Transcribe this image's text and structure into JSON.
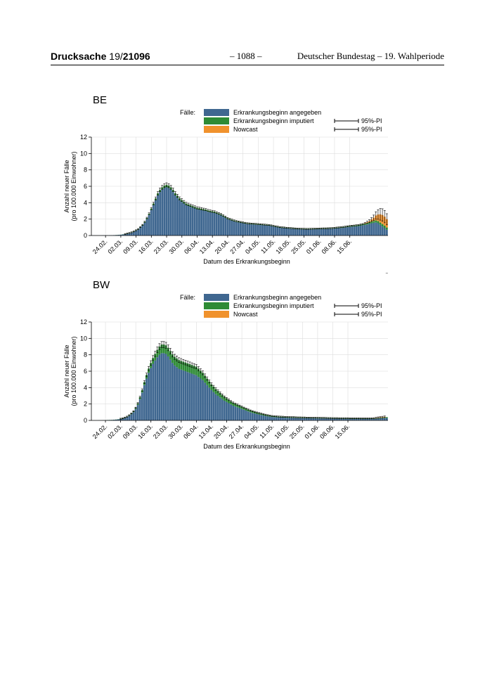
{
  "header": {
    "drucksache_label": "Drucksache",
    "drucksache_number_prefix": "19/",
    "drucksache_number": "21096",
    "page_number": "– 1088 –",
    "right_text": "Deutscher Bundestag – 19. Wahlperiode"
  },
  "colors": {
    "angegeben": "#3f6790",
    "imputiert": "#2e8b35",
    "nowcast": "#f0922d",
    "grid": "#dddddd"
  },
  "chart_data": [
    {
      "type": "bar",
      "stacked": true,
      "title": "BE",
      "legend_label": "Fälle:",
      "legend": [
        "Erkrankungsbeginn angegeben",
        "Erkrankungsbeginn imputiert",
        "Nowcast"
      ],
      "pi_label": "95%-PI",
      "ylabel": "Anzahl neuer Fälle\n(pro 100.000 Einwohner)",
      "xlabel": "Datum des Erkrankungsbeginn",
      "ylim": [
        0,
        12
      ],
      "yticks": [
        0,
        2,
        4,
        6,
        8,
        10,
        12
      ],
      "xticks": [
        "24.02.",
        "02.03.",
        "09.03.",
        "16.03.",
        "23.03.",
        "30.03.",
        "06.04.",
        "13.04.",
        "20.04.",
        "27.04.",
        "04.05.",
        "11.05.",
        "18.05.",
        "25.05.",
        "01.06.",
        "08.06.",
        "15.06."
      ],
      "x_start": "2020-02-18",
      "angegeben": [
        0.02,
        0.02,
        0.02,
        0.02,
        0.02,
        0.03,
        0.03,
        0.03,
        0.04,
        0.04,
        0.05,
        0.06,
        0.08,
        0.1,
        0.13,
        0.16,
        0.22,
        0.28,
        0.35,
        0.45,
        0.58,
        0.72,
        0.95,
        1.2,
        1.55,
        2.0,
        2.5,
        3.1,
        3.7,
        4.3,
        4.9,
        5.3,
        5.6,
        5.8,
        5.9,
        5.8,
        5.6,
        5.3,
        4.9,
        4.6,
        4.3,
        4.1,
        3.9,
        3.7,
        3.6,
        3.5,
        3.4,
        3.3,
        3.2,
        3.15,
        3.1,
        3.05,
        3.0,
        2.9,
        2.85,
        2.8,
        2.75,
        2.65,
        2.55,
        2.45,
        2.3,
        2.15,
        2.0,
        1.9,
        1.8,
        1.72,
        1.65,
        1.6,
        1.55,
        1.5,
        1.45,
        1.4,
        1.38,
        1.36,
        1.34,
        1.32,
        1.3,
        1.28,
        1.26,
        1.24,
        1.22,
        1.2,
        1.15,
        1.1,
        1.05,
        1.0,
        0.95,
        0.92,
        0.9,
        0.88,
        0.86,
        0.84,
        0.82,
        0.8,
        0.78,
        0.77,
        0.76,
        0.75,
        0.74,
        0.74,
        0.75,
        0.76,
        0.77,
        0.78,
        0.79,
        0.8,
        0.8,
        0.8,
        0.81,
        0.82,
        0.83,
        0.85,
        0.88,
        0.9,
        0.92,
        0.95,
        0.98,
        1.02,
        1.05,
        1.08,
        1.1,
        1.12,
        1.15,
        1.2,
        1.25,
        1.3,
        1.35,
        1.42,
        1.5,
        1.55,
        1.6,
        1.5,
        1.3,
        1.1,
        0.9,
        0.7
      ],
      "imputiert": [
        0.0,
        0.0,
        0.0,
        0.0,
        0.0,
        0.0,
        0.0,
        0.0,
        0.0,
        0.0,
        0.0,
        0.01,
        0.01,
        0.01,
        0.02,
        0.02,
        0.03,
        0.03,
        0.04,
        0.05,
        0.06,
        0.07,
        0.08,
        0.1,
        0.12,
        0.14,
        0.16,
        0.18,
        0.2,
        0.22,
        0.24,
        0.26,
        0.27,
        0.28,
        0.28,
        0.28,
        0.27,
        0.26,
        0.25,
        0.24,
        0.23,
        0.22,
        0.21,
        0.2,
        0.19,
        0.19,
        0.18,
        0.18,
        0.17,
        0.17,
        0.17,
        0.16,
        0.16,
        0.16,
        0.15,
        0.15,
        0.15,
        0.14,
        0.14,
        0.14,
        0.13,
        0.13,
        0.12,
        0.12,
        0.12,
        0.11,
        0.11,
        0.11,
        0.1,
        0.1,
        0.1,
        0.1,
        0.1,
        0.1,
        0.1,
        0.1,
        0.1,
        0.1,
        0.09,
        0.09,
        0.09,
        0.09,
        0.09,
        0.08,
        0.08,
        0.08,
        0.08,
        0.08,
        0.08,
        0.07,
        0.07,
        0.07,
        0.07,
        0.07,
        0.07,
        0.07,
        0.07,
        0.07,
        0.07,
        0.07,
        0.07,
        0.07,
        0.07,
        0.07,
        0.07,
        0.07,
        0.08,
        0.08,
        0.08,
        0.08,
        0.08,
        0.09,
        0.09,
        0.09,
        0.1,
        0.1,
        0.1,
        0.11,
        0.11,
        0.12,
        0.12,
        0.13,
        0.13,
        0.14,
        0.15,
        0.16,
        0.17,
        0.18,
        0.2,
        0.22,
        0.24,
        0.26,
        0.28,
        0.3,
        0.3,
        0.28,
        0.25
      ],
      "nowcast": [
        0,
        0,
        0,
        0,
        0,
        0,
        0,
        0,
        0,
        0,
        0,
        0,
        0,
        0,
        0,
        0,
        0,
        0,
        0,
        0,
        0,
        0,
        0,
        0,
        0,
        0,
        0,
        0,
        0,
        0,
        0,
        0,
        0,
        0,
        0,
        0,
        0,
        0,
        0,
        0,
        0,
        0,
        0,
        0,
        0,
        0,
        0,
        0,
        0,
        0,
        0,
        0,
        0,
        0,
        0,
        0,
        0,
        0,
        0,
        0,
        0,
        0,
        0,
        0,
        0,
        0,
        0,
        0,
        0,
        0,
        0,
        0,
        0,
        0,
        0,
        0,
        0,
        0,
        0,
        0,
        0,
        0,
        0,
        0,
        0,
        0,
        0,
        0,
        0,
        0,
        0,
        0,
        0,
        0,
        0,
        0,
        0,
        0,
        0,
        0,
        0,
        0,
        0,
        0,
        0,
        0,
        0,
        0,
        0,
        0,
        0,
        0,
        0,
        0,
        0,
        0,
        0,
        0,
        0,
        0,
        0,
        0,
        0,
        0,
        0,
        0.05,
        0.1,
        0.15,
        0.25,
        0.4,
        0.6,
        0.8,
        1.0,
        1.1,
        1.1,
        1.0
      ]
    },
    {
      "type": "bar",
      "stacked": true,
      "title": "BW",
      "legend_label": "Fälle:",
      "legend": [
        "Erkrankungsbeginn angegeben",
        "Erkrankungsbeginn imputiert",
        "Nowcast"
      ],
      "pi_label": "95%-PI",
      "ylabel": "Anzahl neuer Fälle\n(pro 100.000 Einwohner)",
      "xlabel": "Datum des Erkrankungsbeginn",
      "ylim": [
        0,
        12
      ],
      "yticks": [
        0,
        2,
        4,
        6,
        8,
        10,
        12
      ],
      "xticks": [
        "24.02.",
        "02.03.",
        "09.03.",
        "16.03.",
        "23.03.",
        "30.03.",
        "06.04.",
        "13.04.",
        "20.04.",
        "27.04.",
        "04.05.",
        "11.05.",
        "18.05.",
        "25.05.",
        "01.06.",
        "08.06.",
        "15.06."
      ],
      "x_start": "2020-02-18",
      "angegeben": [
        0.01,
        0.01,
        0.01,
        0.02,
        0.02,
        0.03,
        0.03,
        0.04,
        0.05,
        0.06,
        0.08,
        0.1,
        0.13,
        0.17,
        0.22,
        0.3,
        0.4,
        0.55,
        0.75,
        1.0,
        1.4,
        1.9,
        2.6,
        3.4,
        4.3,
        5.1,
        5.8,
        6.4,
        6.9,
        7.3,
        7.7,
        8.0,
        8.2,
        8.2,
        8.1,
        7.8,
        7.4,
        7.0,
        6.7,
        6.5,
        6.3,
        6.2,
        6.1,
        6.0,
        5.9,
        5.8,
        5.7,
        5.6,
        5.5,
        5.3,
        5.1,
        4.9,
        4.6,
        4.3,
        4.0,
        3.7,
        3.45,
        3.2,
        3.0,
        2.8,
        2.6,
        2.4,
        2.25,
        2.1,
        1.95,
        1.8,
        1.7,
        1.6,
        1.5,
        1.4,
        1.3,
        1.2,
        1.1,
        1.0,
        0.92,
        0.85,
        0.78,
        0.72,
        0.66,
        0.6,
        0.55,
        0.5,
        0.46,
        0.42,
        0.4,
        0.38,
        0.36,
        0.35,
        0.34,
        0.33,
        0.32,
        0.31,
        0.3,
        0.3,
        0.29,
        0.28,
        0.28,
        0.27,
        0.27,
        0.26,
        0.26,
        0.25,
        0.25,
        0.25,
        0.24,
        0.24,
        0.23,
        0.23,
        0.22,
        0.22,
        0.22,
        0.21,
        0.21,
        0.21,
        0.2,
        0.2,
        0.2,
        0.2,
        0.2,
        0.19,
        0.19,
        0.19,
        0.19,
        0.19,
        0.18,
        0.18,
        0.18,
        0.18,
        0.18,
        0.18,
        0.18,
        0.2,
        0.22,
        0.24,
        0.26,
        0.28,
        0.3
      ],
      "imputiert": [
        0.0,
        0.0,
        0.0,
        0.0,
        0.0,
        0.0,
        0.0,
        0.01,
        0.01,
        0.01,
        0.01,
        0.02,
        0.02,
        0.03,
        0.04,
        0.05,
        0.06,
        0.08,
        0.1,
        0.12,
        0.15,
        0.19,
        0.24,
        0.3,
        0.38,
        0.45,
        0.52,
        0.6,
        0.7,
        0.8,
        0.9,
        1.0,
        1.05,
        1.05,
        1.05,
        1.05,
        1.05,
        1.05,
        1.05,
        1.05,
        1.05,
        1.05,
        1.05,
        1.05,
        1.05,
        1.05,
        1.05,
        1.05,
        1.05,
        1.0,
        0.95,
        0.9,
        0.85,
        0.8,
        0.75,
        0.7,
        0.66,
        0.62,
        0.58,
        0.54,
        0.5,
        0.47,
        0.44,
        0.41,
        0.38,
        0.36,
        0.34,
        0.32,
        0.3,
        0.28,
        0.26,
        0.24,
        0.23,
        0.22,
        0.21,
        0.2,
        0.19,
        0.18,
        0.17,
        0.16,
        0.15,
        0.14,
        0.13,
        0.12,
        0.12,
        0.12,
        0.11,
        0.11,
        0.11,
        0.1,
        0.1,
        0.1,
        0.1,
        0.1,
        0.09,
        0.09,
        0.09,
        0.09,
        0.09,
        0.08,
        0.08,
        0.08,
        0.08,
        0.08,
        0.08,
        0.08,
        0.08,
        0.08,
        0.08,
        0.07,
        0.07,
        0.07,
        0.07,
        0.07,
        0.07,
        0.07,
        0.07,
        0.07,
        0.07,
        0.07,
        0.07,
        0.07,
        0.07,
        0.07,
        0.07,
        0.07,
        0.07,
        0.07,
        0.07,
        0.08,
        0.08,
        0.09,
        0.1,
        0.1,
        0.1,
        0.1,
        0.1
      ],
      "nowcast": [
        0,
        0,
        0,
        0,
        0,
        0,
        0,
        0,
        0,
        0,
        0,
        0,
        0,
        0,
        0,
        0,
        0,
        0,
        0,
        0,
        0,
        0,
        0,
        0,
        0,
        0,
        0,
        0,
        0,
        0,
        0,
        0,
        0,
        0,
        0,
        0,
        0,
        0,
        0,
        0,
        0,
        0,
        0,
        0,
        0,
        0,
        0,
        0,
        0,
        0,
        0,
        0,
        0,
        0,
        0,
        0,
        0,
        0,
        0,
        0,
        0,
        0,
        0,
        0,
        0,
        0,
        0,
        0,
        0,
        0,
        0,
        0,
        0,
        0,
        0,
        0,
        0,
        0,
        0,
        0,
        0,
        0,
        0,
        0,
        0,
        0,
        0,
        0,
        0,
        0,
        0,
        0,
        0,
        0,
        0,
        0,
        0,
        0,
        0,
        0,
        0,
        0,
        0,
        0,
        0,
        0,
        0,
        0,
        0,
        0,
        0,
        0,
        0,
        0,
        0,
        0,
        0,
        0,
        0,
        0,
        0,
        0,
        0,
        0,
        0,
        0,
        0,
        0,
        0,
        0,
        0.01,
        0.02,
        0.03,
        0.04,
        0.05,
        0.06
      ]
    }
  ]
}
